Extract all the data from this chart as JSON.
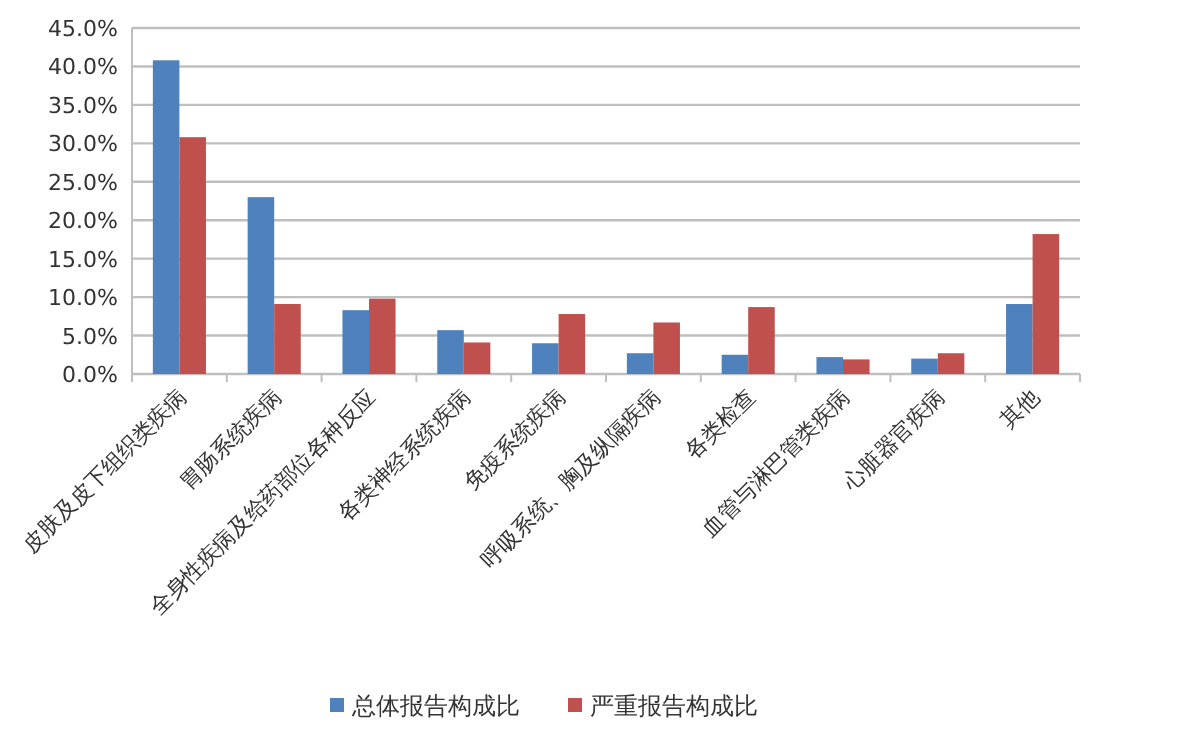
{
  "chart_data": {
    "type": "bar",
    "categories": [
      "皮肤及皮下组织类疾病",
      "胃肠系统疾病",
      "全身性疾病及给药部位各种反应",
      "各类神经系统疾病",
      "免疫系统疾病",
      "呼吸系统、胸及纵隔疾病",
      "各类检查",
      "血管与淋巴管类疾病",
      "心脏器官疾病",
      "其他"
    ],
    "series": [
      {
        "name": "总体报告构成比",
        "color": "#4f81bd",
        "values": [
          40.8,
          23.0,
          8.3,
          5.7,
          4.0,
          2.7,
          2.5,
          2.2,
          2.0,
          9.1
        ]
      },
      {
        "name": "严重报告构成比",
        "color": "#c0504d",
        "values": [
          30.8,
          9.1,
          9.8,
          4.1,
          7.8,
          6.7,
          8.7,
          1.9,
          2.7,
          18.2
        ]
      }
    ],
    "ylim": [
      0,
      45
    ],
    "yticks": [
      {
        "value": 0,
        "label": "0.0%"
      },
      {
        "value": 5,
        "label": "5.0%"
      },
      {
        "value": 10,
        "label": "10.0%"
      },
      {
        "value": 15,
        "label": "15.0%"
      },
      {
        "value": 20,
        "label": "20.0%"
      },
      {
        "value": 25,
        "label": "25.0%"
      },
      {
        "value": 30,
        "label": "30.0%"
      },
      {
        "value": 35,
        "label": "35.0%"
      },
      {
        "value": 40,
        "label": "40.0%"
      },
      {
        "value": 45,
        "label": "45.0%"
      }
    ],
    "grid": "y",
    "legend": "bottom"
  }
}
